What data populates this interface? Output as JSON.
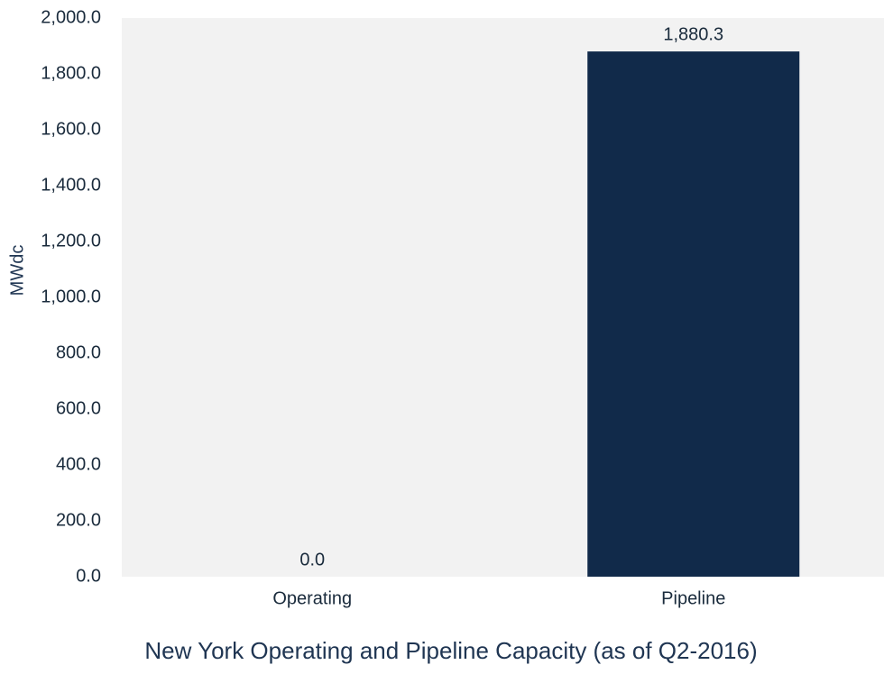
{
  "chart_data": {
    "type": "bar",
    "title": "New York Operating and Pipeline Capacity (as of Q2-2016)",
    "xlabel": "",
    "ylabel": "MWdc",
    "categories": [
      "Operating",
      "Pipeline"
    ],
    "values": [
      0.0,
      1880.3
    ],
    "data_labels": [
      "0.0",
      "1,880.3"
    ],
    "ylim": [
      0,
      2000
    ],
    "yticks": [
      0,
      200,
      400,
      600,
      800,
      1000,
      1200,
      1400,
      1600,
      1800,
      2000
    ],
    "ytick_labels": [
      "0.0",
      "200.0",
      "400.0",
      "600.0",
      "800.0",
      "1,000.0",
      "1,200.0",
      "1,400.0",
      "1,600.0",
      "1,800.0",
      "2,000.0"
    ],
    "grid": false,
    "legend": "none",
    "colors": {
      "bar": "#112a4a",
      "plot_background": "#f2f2f2",
      "text": "#1a2b3c"
    }
  }
}
